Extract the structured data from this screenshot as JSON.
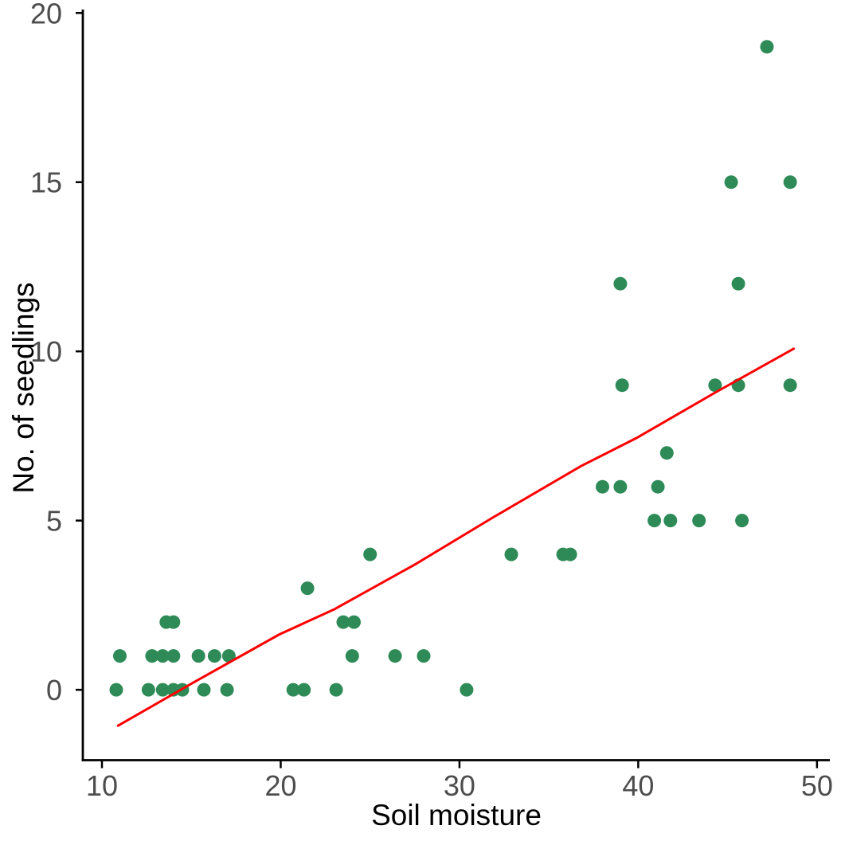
{
  "chart_data": {
    "type": "scatter",
    "title": "",
    "xlabel": "Soil moisture",
    "ylabel": "No. of seedlings",
    "xlim": [
      8.93,
      50.72
    ],
    "ylim": [
      -2.08,
      20.1
    ],
    "xticks": [
      10,
      20,
      30,
      40,
      50
    ],
    "yticks": [
      0,
      5,
      10,
      15,
      20
    ],
    "grid": false,
    "legend_position": "none",
    "point_color": "#2E8B57",
    "trend_color": "#FF0000",
    "axis_text_color": "#4D4D4D",
    "axis_line_color": "#000000",
    "points": [
      [
        10.8,
        0
      ],
      [
        12.6,
        0
      ],
      [
        13.4,
        0
      ],
      [
        14.0,
        0
      ],
      [
        14.5,
        0
      ],
      [
        15.7,
        0
      ],
      [
        17.0,
        0
      ],
      [
        20.7,
        0
      ],
      [
        21.3,
        0
      ],
      [
        23.1,
        0
      ],
      [
        30.4,
        0
      ],
      [
        11.0,
        1
      ],
      [
        12.8,
        1
      ],
      [
        13.4,
        1
      ],
      [
        14.0,
        1
      ],
      [
        15.4,
        1
      ],
      [
        16.3,
        1
      ],
      [
        17.1,
        1
      ],
      [
        24.0,
        1
      ],
      [
        26.4,
        1
      ],
      [
        28.0,
        1
      ],
      [
        13.6,
        2
      ],
      [
        14.0,
        2
      ],
      [
        23.5,
        2
      ],
      [
        24.1,
        2
      ],
      [
        21.5,
        3
      ],
      [
        25.0,
        4
      ],
      [
        32.9,
        4
      ],
      [
        35.8,
        4
      ],
      [
        36.2,
        4
      ],
      [
        40.9,
        5
      ],
      [
        41.8,
        5
      ],
      [
        43.4,
        5
      ],
      [
        45.8,
        5
      ],
      [
        38.0,
        6
      ],
      [
        39.0,
        6
      ],
      [
        41.1,
        6
      ],
      [
        41.6,
        7
      ],
      [
        39.1,
        9
      ],
      [
        44.3,
        9
      ],
      [
        45.6,
        9
      ],
      [
        48.5,
        9
      ],
      [
        39.0,
        12
      ],
      [
        45.6,
        12
      ],
      [
        45.2,
        15
      ],
      [
        48.5,
        15
      ],
      [
        47.2,
        19
      ]
    ],
    "trend_line": [
      [
        10.9,
        -1.06
      ],
      [
        15.1,
        0.21
      ],
      [
        19.9,
        1.63
      ],
      [
        23.0,
        2.38
      ],
      [
        27.5,
        3.7
      ],
      [
        31.9,
        5.1
      ],
      [
        36.8,
        6.61
      ],
      [
        39.9,
        7.44
      ],
      [
        44.3,
        8.78
      ],
      [
        48.7,
        10.08
      ]
    ]
  }
}
